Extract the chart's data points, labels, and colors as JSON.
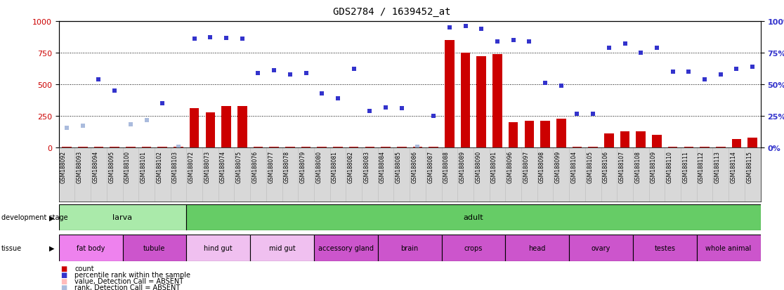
{
  "title": "GDS2784 / 1639452_at",
  "samples": [
    "GSM188092",
    "GSM188093",
    "GSM188094",
    "GSM188095",
    "GSM188100",
    "GSM188101",
    "GSM188102",
    "GSM188103",
    "GSM188072",
    "GSM188073",
    "GSM188074",
    "GSM188075",
    "GSM188076",
    "GSM188077",
    "GSM188078",
    "GSM188079",
    "GSM188080",
    "GSM188081",
    "GSM188082",
    "GSM188083",
    "GSM188084",
    "GSM188085",
    "GSM188086",
    "GSM188087",
    "GSM188088",
    "GSM188089",
    "GSM188090",
    "GSM188091",
    "GSM188096",
    "GSM188097",
    "GSM188098",
    "GSM188099",
    "GSM188104",
    "GSM188105",
    "GSM188106",
    "GSM188107",
    "GSM188108",
    "GSM188109",
    "GSM188110",
    "GSM188111",
    "GSM188112",
    "GSM188113",
    "GSM188114",
    "GSM188115"
  ],
  "count_values": [
    5,
    5,
    5,
    5,
    5,
    5,
    5,
    5,
    310,
    280,
    330,
    330,
    5,
    5,
    5,
    5,
    5,
    5,
    5,
    5,
    5,
    5,
    5,
    5,
    850,
    750,
    720,
    740,
    200,
    210,
    210,
    230,
    5,
    5,
    110,
    130,
    130,
    100,
    5,
    5,
    5,
    5,
    65,
    80
  ],
  "rank_values": [
    155,
    175,
    540,
    450,
    185,
    215,
    350,
    5,
    860,
    870,
    865,
    860,
    590,
    610,
    580,
    590,
    430,
    390,
    620,
    290,
    320,
    310,
    5,
    250,
    950,
    960,
    940,
    840,
    850,
    840,
    510,
    490,
    265,
    270,
    790,
    820,
    750,
    790,
    600,
    600,
    540,
    580,
    620,
    640
  ],
  "absent_count": [
    false,
    false,
    false,
    false,
    false,
    false,
    false,
    false,
    false,
    false,
    false,
    false,
    false,
    false,
    false,
    false,
    false,
    false,
    false,
    false,
    false,
    false,
    false,
    false,
    false,
    false,
    false,
    false,
    false,
    false,
    false,
    false,
    false,
    false,
    false,
    false,
    false,
    false,
    false,
    false,
    false,
    false,
    false,
    false
  ],
  "absent_rank": [
    true,
    true,
    false,
    false,
    true,
    true,
    false,
    true,
    false,
    false,
    false,
    false,
    false,
    false,
    false,
    false,
    false,
    false,
    false,
    false,
    false,
    false,
    true,
    false,
    false,
    false,
    false,
    false,
    false,
    false,
    false,
    false,
    false,
    false,
    false,
    false,
    false,
    false,
    false,
    false,
    false,
    false,
    false,
    false
  ],
  "dev_stage_groups": [
    {
      "label": "larva",
      "start": 0,
      "end": 8,
      "color": "#aaeaaa"
    },
    {
      "label": "adult",
      "start": 8,
      "end": 44,
      "color": "#66cc66"
    }
  ],
  "tissue_groups": [
    {
      "label": "fat body",
      "start": 0,
      "end": 4,
      "color": "#ee82ee"
    },
    {
      "label": "tubule",
      "start": 4,
      "end": 8,
      "color": "#cc55cc"
    },
    {
      "label": "hind gut",
      "start": 8,
      "end": 12,
      "color": "#f0c0f0"
    },
    {
      "label": "mid gut",
      "start": 12,
      "end": 16,
      "color": "#f0c0f0"
    },
    {
      "label": "accessory gland",
      "start": 16,
      "end": 20,
      "color": "#cc55cc"
    },
    {
      "label": "brain",
      "start": 20,
      "end": 24,
      "color": "#cc55cc"
    },
    {
      "label": "crops",
      "start": 24,
      "end": 28,
      "color": "#cc55cc"
    },
    {
      "label": "head",
      "start": 28,
      "end": 32,
      "color": "#cc55cc"
    },
    {
      "label": "ovary",
      "start": 32,
      "end": 36,
      "color": "#cc55cc"
    },
    {
      "label": "testes",
      "start": 36,
      "end": 40,
      "color": "#cc55cc"
    },
    {
      "label": "whole animal",
      "start": 40,
      "end": 44,
      "color": "#cc55cc"
    }
  ],
  "bar_color": "#cc0000",
  "rank_color_present": "#3333cc",
  "rank_color_absent": "#aabbdd",
  "count_color_absent": "#ffbbbb",
  "ylim": [
    0,
    1000
  ],
  "y2lim": [
    0,
    100
  ],
  "yticks": [
    0,
    250,
    500,
    750,
    1000
  ],
  "y2ticks": [
    0,
    25,
    50,
    75,
    100
  ],
  "legend_items": [
    {
      "label": "count",
      "color": "#cc0000"
    },
    {
      "label": "percentile rank within the sample",
      "color": "#3333cc"
    },
    {
      "label": "value, Detection Call = ABSENT",
      "color": "#ffbbbb"
    },
    {
      "label": "rank, Detection Call = ABSENT",
      "color": "#aabbdd"
    }
  ]
}
